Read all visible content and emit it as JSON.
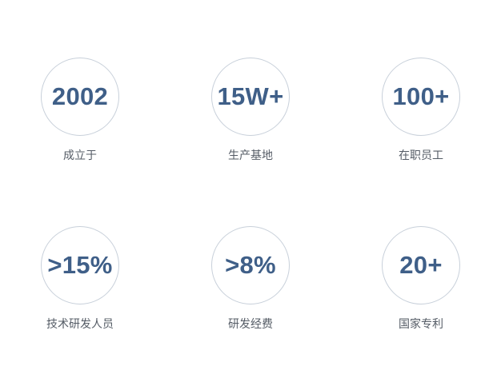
{
  "accent_color": "#3f5f88",
  "stats": [
    {
      "value": "2002",
      "label": "成立于"
    },
    {
      "value": "15W+",
      "label": "生产基地"
    },
    {
      "value": "100+",
      "label": "在职员工"
    },
    {
      "value": ">15%",
      "label": "技术研发人员"
    },
    {
      "value": ">8%",
      "label": "研发经费"
    },
    {
      "value": "20+",
      "label": "国家专利"
    }
  ]
}
